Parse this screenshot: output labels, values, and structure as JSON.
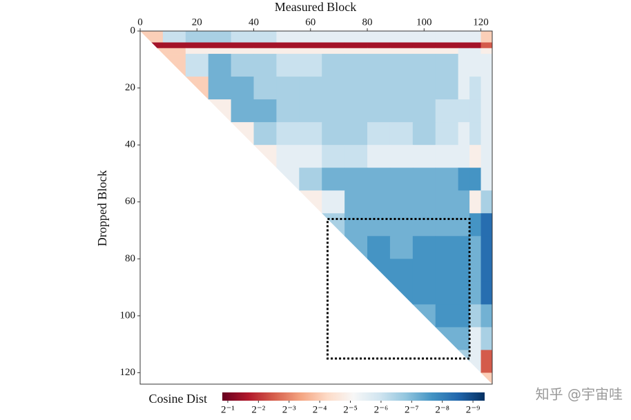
{
  "chart_data": {
    "type": "heatmap",
    "x_label": "Measured Block",
    "y_label": "Dropped Block",
    "colorbar_label": "Cosine Dist",
    "watermark": "知乎 @宇宙哇",
    "x_bins": [
      0,
      8,
      16,
      24,
      32,
      40,
      48,
      56,
      64,
      72,
      80,
      88,
      96,
      104,
      112,
      116,
      120,
      124
    ],
    "y_bins": [
      0,
      4,
      6,
      8,
      16,
      24,
      32,
      40,
      48,
      56,
      64,
      72,
      80,
      88,
      96,
      104,
      112,
      120,
      124
    ],
    "values": [
      [
        0.06,
        0.015,
        0.011,
        0.011,
        0.015,
        0.015,
        0.022,
        0.022,
        0.022,
        0.022,
        0.022,
        0.022,
        0.022,
        0.022,
        0.022,
        0.022,
        0.06
      ],
      [
        0.35,
        0.35,
        0.35,
        0.35,
        0.35,
        0.35,
        0.35,
        0.35,
        0.35,
        0.35,
        0.35,
        0.35,
        0.35,
        0.35,
        0.35,
        0.35,
        0.18
      ],
      [
        0.06,
        0.06,
        0.035,
        0.035,
        0.035,
        0.035,
        0.035,
        0.035,
        0.035,
        0.035,
        0.035,
        0.035,
        0.035,
        0.035,
        0.022,
        0.022,
        0.035
      ],
      [
        null,
        0.06,
        0.015,
        0.007,
        0.011,
        0.011,
        0.015,
        0.015,
        0.011,
        0.011,
        0.011,
        0.011,
        0.011,
        0.011,
        0.022,
        0.022,
        0.022
      ],
      [
        null,
        null,
        0.06,
        0.007,
        0.007,
        0.011,
        0.011,
        0.011,
        0.011,
        0.011,
        0.011,
        0.011,
        0.011,
        0.011,
        0.022,
        0.015,
        0.022
      ],
      [
        null,
        null,
        null,
        0.035,
        0.007,
        0.007,
        0.011,
        0.011,
        0.011,
        0.011,
        0.011,
        0.011,
        0.011,
        0.015,
        0.015,
        0.015,
        0.022
      ],
      [
        null,
        null,
        null,
        null,
        0.035,
        0.011,
        0.015,
        0.015,
        0.011,
        0.011,
        0.015,
        0.015,
        0.011,
        0.015,
        0.022,
        0.015,
        0.022
      ],
      [
        null,
        null,
        null,
        null,
        null,
        0.035,
        0.022,
        0.022,
        0.015,
        0.015,
        0.022,
        0.022,
        0.022,
        0.022,
        0.022,
        0.035,
        0.022
      ],
      [
        null,
        null,
        null,
        null,
        null,
        null,
        0.022,
        0.011,
        0.007,
        0.007,
        0.007,
        0.007,
        0.007,
        0.007,
        0.005,
        0.005,
        0.022
      ],
      [
        null,
        null,
        null,
        null,
        null,
        null,
        null,
        0.035,
        0.022,
        0.007,
        0.007,
        0.007,
        0.007,
        0.007,
        0.007,
        0.035,
        0.011
      ],
      [
        null,
        null,
        null,
        null,
        null,
        null,
        null,
        null,
        0.011,
        0.007,
        0.007,
        0.007,
        0.007,
        0.007,
        0.007,
        0.005,
        0.003
      ],
      [
        null,
        null,
        null,
        null,
        null,
        null,
        null,
        null,
        null,
        0.007,
        0.005,
        0.007,
        0.005,
        0.005,
        0.005,
        0.007,
        0.003
      ],
      [
        null,
        null,
        null,
        null,
        null,
        null,
        null,
        null,
        null,
        null,
        0.005,
        0.005,
        0.005,
        0.005,
        0.005,
        0.007,
        0.003
      ],
      [
        null,
        null,
        null,
        null,
        null,
        null,
        null,
        null,
        null,
        null,
        null,
        0.005,
        0.005,
        0.005,
        0.005,
        0.007,
        0.003
      ],
      [
        null,
        null,
        null,
        null,
        null,
        null,
        null,
        null,
        null,
        null,
        null,
        null,
        0.007,
        0.005,
        0.005,
        0.011,
        0.007
      ],
      [
        null,
        null,
        null,
        null,
        null,
        null,
        null,
        null,
        null,
        null,
        null,
        null,
        null,
        0.007,
        0.007,
        0.022,
        0.011
      ],
      [
        null,
        null,
        null,
        null,
        null,
        null,
        null,
        null,
        null,
        null,
        null,
        null,
        null,
        null,
        0.011,
        0.022,
        0.18
      ],
      [
        null,
        null,
        null,
        null,
        null,
        null,
        null,
        null,
        null,
        null,
        null,
        null,
        null,
        null,
        null,
        null,
        0.06
      ]
    ],
    "xlim": [
      0,
      124
    ],
    "ylim": [
      0,
      124
    ],
    "xticks": [
      0,
      20,
      40,
      60,
      80,
      100,
      120
    ],
    "yticks": [
      0,
      20,
      40,
      60,
      80,
      100,
      120
    ],
    "highlight_box": {
      "x": [
        66,
        116
      ],
      "y": [
        66,
        115
      ]
    },
    "color_scale": "log2",
    "colors": [
      "#67001f",
      "#b2182b",
      "#d6604d",
      "#f4a582",
      "#fddbc7",
      "#f7f7f7",
      "#d1e5f0",
      "#92c5de",
      "#4393c3",
      "#2166ac",
      "#053061"
    ],
    "clim": [
      0.566,
      0.0015
    ],
    "cticks": [
      {
        "value": 0.5,
        "label": "2⁻¹"
      },
      {
        "value": 0.25,
        "label": "2⁻²"
      },
      {
        "value": 0.125,
        "label": "2⁻³"
      },
      {
        "value": 0.0625,
        "label": "2⁻⁴"
      },
      {
        "value": 0.03125,
        "label": "2⁻⁵"
      },
      {
        "value": 0.015625,
        "label": "2⁻⁶"
      },
      {
        "value": 0.0078125,
        "label": "2⁻⁷"
      },
      {
        "value": 0.00390625,
        "label": "2⁻⁸"
      },
      {
        "value": 0.001953125,
        "label": "2⁻⁹"
      }
    ]
  }
}
